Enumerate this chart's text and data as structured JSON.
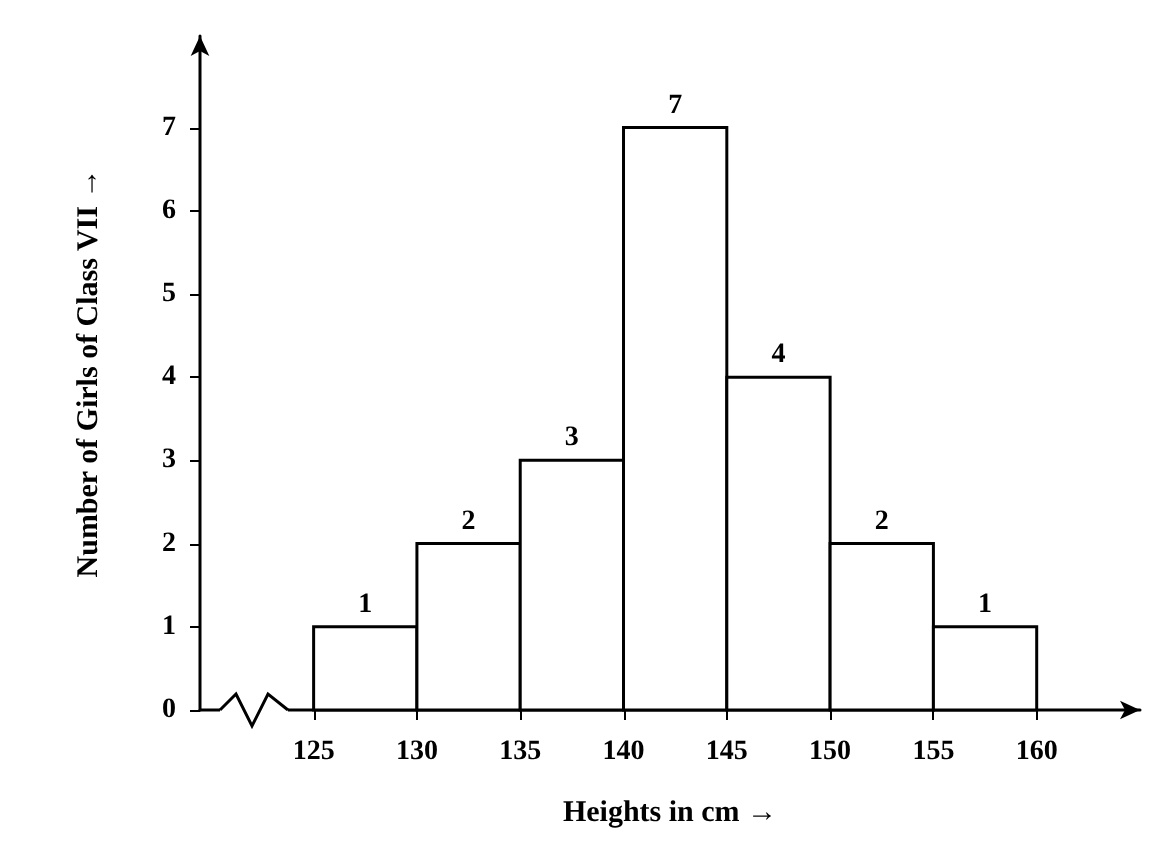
{
  "chart_data": {
    "type": "histogram",
    "xlabel": "Heights in cm →",
    "ylabel": "Number of Girls of Class VII →",
    "bins": [
      125,
      130,
      135,
      140,
      145,
      150,
      155,
      160
    ],
    "values": [
      1,
      2,
      3,
      7,
      4,
      2,
      1
    ],
    "color": "#ffffff",
    "xlim": [
      119.5,
      165
    ],
    "xticks": [
      125,
      130,
      135,
      140,
      145,
      150,
      155,
      160
    ],
    "ylim": [
      0,
      8.1
    ],
    "yticks": [
      0,
      1,
      2,
      3,
      4,
      5,
      6,
      7
    ],
    "grid": false,
    "data_labels": true
  }
}
